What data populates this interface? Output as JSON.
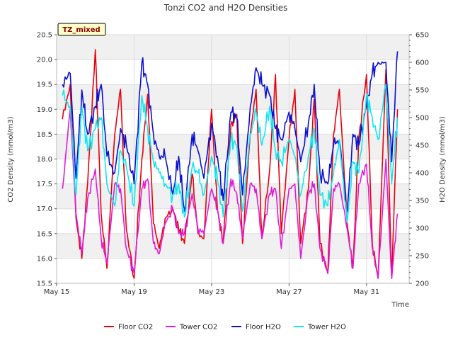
{
  "chart_data": {
    "type": "line",
    "title": "Tonzi CO2 and H2O Densities",
    "site_label": "TZ_mixed",
    "xlabel": "Time",
    "ylabel": "CO2 Density (mmol/m3)",
    "y2label": "H2O Density (mmol/m3)",
    "x_unit": "day of May",
    "xlim": [
      15,
      33.2
    ],
    "ylim": [
      15.5,
      20.5
    ],
    "y2lim": [
      200,
      650
    ],
    "x_ticks": [
      {
        "value": 15,
        "label": "May 15"
      },
      {
        "value": 19,
        "label": "May 19"
      },
      {
        "value": 23,
        "label": "May 23"
      },
      {
        "value": 27,
        "label": "May 27"
      },
      {
        "value": 31,
        "label": "May 31"
      }
    ],
    "y_ticks": [
      "15.5",
      "16.0",
      "16.5",
      "17.0",
      "17.5",
      "18.0",
      "18.5",
      "19.0",
      "19.5",
      "20.0",
      "20.5"
    ],
    "y2_ticks": [
      "200",
      "250",
      "300",
      "350",
      "400",
      "450",
      "500",
      "550",
      "600",
      "650"
    ],
    "grid": true,
    "legend_position": "bottom",
    "series": [
      {
        "name": "Floor CO2",
        "axis": "left",
        "color": "#e8000b",
        "x": [
          15.3,
          15.7,
          16.0,
          16.3,
          16.6,
          17.0,
          17.3,
          17.6,
          18.0,
          18.3,
          18.6,
          19.0,
          19.4,
          19.7,
          20.0,
          20.3,
          20.6,
          21.0,
          21.3,
          21.6,
          22.0,
          22.3,
          22.6,
          23.0,
          23.3,
          23.6,
          24.0,
          24.3,
          24.6,
          25.0,
          25.3,
          25.6,
          26.0,
          26.3,
          26.6,
          27.0,
          27.3,
          27.6,
          28.0,
          28.3,
          28.6,
          29.0,
          29.3,
          29.6,
          30.0,
          30.3,
          30.6,
          31.0,
          31.3,
          31.6,
          32.0,
          32.3,
          32.6
        ],
        "values": [
          18.8,
          19.5,
          16.8,
          16.0,
          17.5,
          20.2,
          16.9,
          15.8,
          18.5,
          19.4,
          16.6,
          15.6,
          18.0,
          19.3,
          16.7,
          16.2,
          16.8,
          17.0,
          16.6,
          16.3,
          17.7,
          16.5,
          16.4,
          19.0,
          17.0,
          16.3,
          18.7,
          18.9,
          16.3,
          18.5,
          19.4,
          16.4,
          17.8,
          19.7,
          16.5,
          18.4,
          19.4,
          16.3,
          17.4,
          19.2,
          16.3,
          15.7,
          18.5,
          19.4,
          16.7,
          15.8,
          18.4,
          19.7,
          16.3,
          15.6,
          19.8,
          15.6,
          19.0
        ]
      },
      {
        "name": "Tower CO2",
        "axis": "left",
        "color": "#e01adb",
        "x": [
          15.3,
          15.7,
          16.0,
          16.3,
          16.6,
          17.0,
          17.3,
          17.6,
          18.0,
          18.3,
          18.6,
          19.0,
          19.4,
          19.7,
          20.0,
          20.3,
          20.6,
          21.0,
          21.3,
          21.6,
          22.0,
          22.3,
          22.6,
          23.0,
          23.3,
          23.6,
          24.0,
          24.3,
          24.6,
          25.0,
          25.3,
          25.6,
          26.0,
          26.3,
          26.6,
          27.0,
          27.3,
          27.6,
          28.0,
          28.3,
          28.6,
          29.0,
          29.3,
          29.6,
          30.0,
          30.3,
          30.6,
          31.0,
          31.3,
          31.6,
          32.0,
          32.3,
          32.6
        ],
        "values": [
          17.4,
          19.0,
          16.9,
          16.1,
          17.2,
          17.8,
          16.4,
          15.9,
          17.5,
          17.4,
          16.2,
          15.7,
          17.4,
          17.6,
          16.3,
          16.1,
          16.7,
          17.0,
          16.5,
          16.5,
          17.3,
          16.6,
          16.5,
          17.4,
          17.0,
          16.3,
          17.6,
          17.3,
          16.4,
          17.5,
          17.4,
          16.4,
          17.3,
          17.4,
          16.2,
          17.4,
          17.5,
          16.0,
          17.3,
          17.5,
          16.2,
          15.7,
          17.4,
          17.5,
          16.6,
          15.8,
          17.5,
          17.9,
          16.2,
          15.6,
          18.0,
          15.6,
          16.9
        ]
      },
      {
        "name": "Floor H2O",
        "axis": "right",
        "color": "#0a0fd0",
        "x": [
          15.3,
          15.7,
          16.0,
          16.3,
          16.6,
          17.0,
          17.3,
          17.6,
          18.0,
          18.3,
          18.6,
          19.0,
          19.4,
          19.7,
          20.0,
          20.3,
          20.6,
          21.0,
          21.3,
          21.6,
          22.0,
          22.3,
          22.6,
          23.0,
          23.3,
          23.6,
          24.0,
          24.3,
          24.6,
          25.0,
          25.3,
          25.6,
          26.0,
          26.3,
          26.6,
          27.0,
          27.3,
          27.6,
          28.0,
          28.3,
          28.6,
          29.0,
          29.3,
          29.6,
          30.0,
          30.3,
          30.6,
          31.0,
          31.3,
          31.6,
          32.0,
          32.3,
          32.6
        ],
        "values": [
          560,
          580,
          390,
          550,
          470,
          520,
          560,
          430,
          400,
          480,
          450,
          380,
          600,
          560,
          470,
          430,
          430,
          360,
          430,
          330,
          470,
          440,
          390,
          490,
          430,
          350,
          510,
          500,
          360,
          520,
          590,
          560,
          540,
          480,
          460,
          510,
          480,
          420,
          490,
          560,
          400,
          380,
          450,
          460,
          330,
          470,
          450,
          520,
          580,
          600,
          600,
          420,
          620
        ]
      },
      {
        "name": "Tower H2O",
        "axis": "right",
        "color": "#12e6f0",
        "x": [
          15.3,
          15.7,
          16.0,
          16.3,
          16.6,
          17.0,
          17.3,
          17.6,
          18.0,
          18.3,
          18.6,
          19.0,
          19.4,
          19.7,
          20.0,
          20.3,
          20.6,
          21.0,
          21.3,
          21.6,
          22.0,
          22.3,
          22.6,
          23.0,
          23.3,
          23.6,
          24.0,
          24.3,
          24.6,
          25.0,
          25.3,
          25.6,
          26.0,
          26.3,
          26.6,
          27.0,
          27.3,
          27.6,
          28.0,
          28.3,
          28.6,
          29.0,
          29.3,
          29.6,
          30.0,
          30.3,
          30.6,
          31.0,
          31.3,
          31.6,
          32.0,
          32.3,
          32.6
        ],
        "values": [
          540,
          520,
          360,
          520,
          440,
          480,
          500,
          380,
          340,
          440,
          410,
          340,
          540,
          480,
          420,
          400,
          380,
          360,
          380,
          320,
          410,
          400,
          360,
          430,
          390,
          320,
          460,
          450,
          330,
          470,
          510,
          450,
          520,
          440,
          420,
          460,
          430,
          360,
          430,
          480,
          360,
          340,
          400,
          460,
          310,
          420,
          400,
          540,
          500,
          460,
          560,
          380,
          500
        ]
      }
    ]
  }
}
